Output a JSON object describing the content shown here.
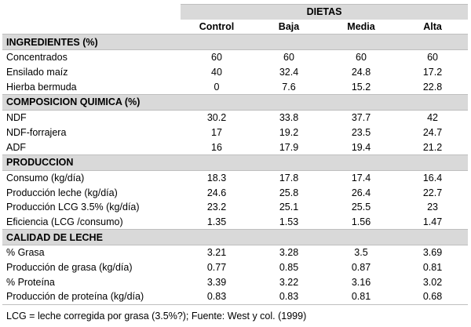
{
  "table": {
    "group_header": "DIETAS",
    "columns": [
      "Control",
      "Baja",
      "Media",
      "Alta"
    ],
    "sections": [
      {
        "title": "INGREDIENTES (%)",
        "rows": [
          {
            "label": "Concentrados",
            "values": [
              "60",
              "60",
              "60",
              "60"
            ]
          },
          {
            "label": "Ensilado maíz",
            "values": [
              "40",
              "32.4",
              "24.8",
              "17.2"
            ]
          },
          {
            "label": "Hierba bermuda",
            "values": [
              "0",
              "7.6",
              "15.2",
              "22.8"
            ]
          }
        ]
      },
      {
        "title": "COMPOSICION QUIMICA (%)",
        "rows": [
          {
            "label": "NDF",
            "values": [
              "30.2",
              "33.8",
              "37.7",
              "42"
            ]
          },
          {
            "label": "NDF-forrajera",
            "values": [
              "17",
              "19.2",
              "23.5",
              "24.7"
            ]
          },
          {
            "label": "ADF",
            "values": [
              "16",
              "17.9",
              "19.4",
              "21.2"
            ]
          }
        ]
      },
      {
        "title": "PRODUCCION",
        "rows": [
          {
            "label": "Consumo (kg/día)",
            "values": [
              "18.3",
              "17.8",
              "17.4",
              "16.4"
            ]
          },
          {
            "label": "Producción leche (kg/día)",
            "values": [
              "24.6",
              "25.8",
              "26.4",
              "22.7"
            ]
          },
          {
            "label": "Producción LCG 3.5% (kg/día)",
            "values": [
              "23.2",
              "25.1",
              "25.5",
              "23"
            ]
          },
          {
            "label": "Eficiencia (LCG /consumo)",
            "values": [
              "1.35",
              "1.53",
              "1.56",
              "1.47"
            ]
          }
        ]
      },
      {
        "title": "CALIDAD DE LECHE",
        "rows": [
          {
            "label": "% Grasa",
            "values": [
              "3.21",
              "3.28",
              "3.5",
              "3.69"
            ]
          },
          {
            "label": "Producción de grasa (kg/día)",
            "values": [
              "0.77",
              "0.85",
              "0.87",
              "0.81"
            ]
          },
          {
            "label": "% Proteína",
            "values": [
              "3.39",
              "3.22",
              "3.16",
              "3.02"
            ]
          },
          {
            "label": "Producción de proteína (kg/día)",
            "values": [
              "0.83",
              "0.83",
              "0.81",
              "0.68"
            ]
          }
        ]
      }
    ],
    "footnote": "LCG = leche corregida por grasa (3.5%?); Fuente: West y col. (1999)"
  }
}
